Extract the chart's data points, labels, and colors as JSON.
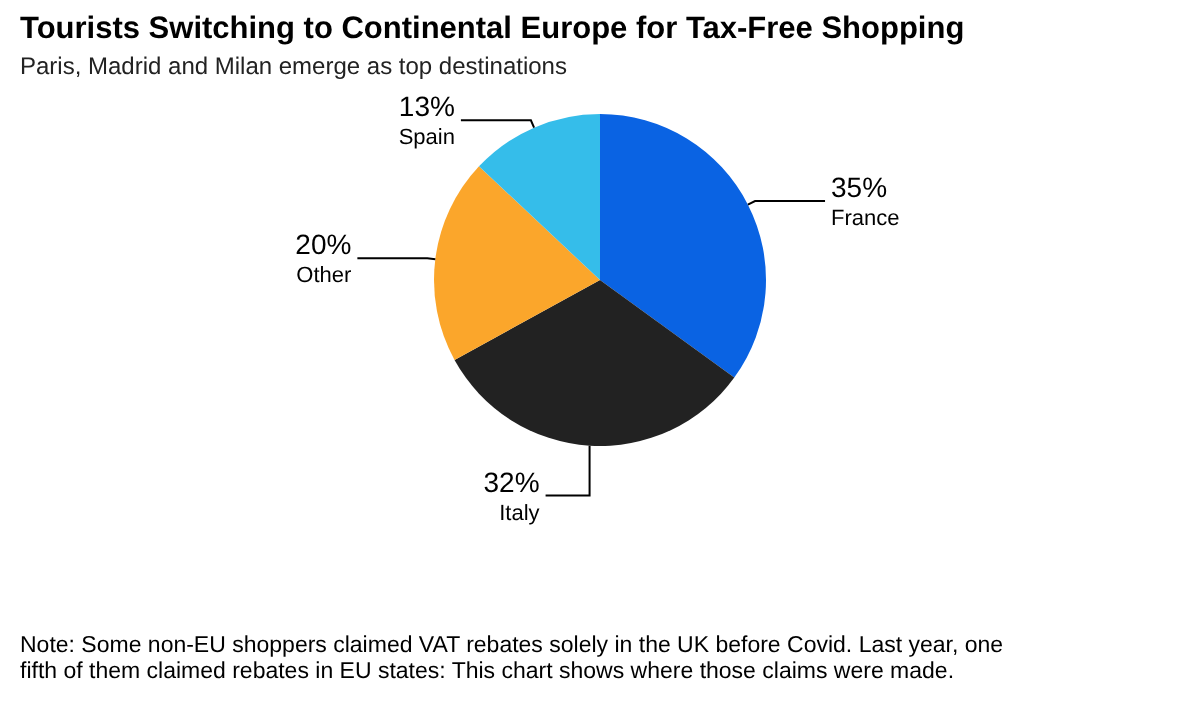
{
  "chart_data": {
    "type": "pie",
    "title": "Tourists Switching to Continental Europe for Tax-Free Shopping",
    "subtitle": "Paris, Madrid and Milan emerge as top destinations",
    "categories": [
      "France",
      "Italy",
      "Other",
      "Spain"
    ],
    "values": [
      35,
      32,
      20,
      13
    ],
    "value_labels": [
      "35%",
      "32%",
      "20%",
      "13%"
    ],
    "colors": [
      "#0a63e3",
      "#222222",
      "#fba62b",
      "#35bdea"
    ],
    "annotations": [
      "Note: Some non-EU shoppers claimed VAT rebates solely in the UK before Covid. Last year, one fifth of them claimed rebates in EU states: This chart shows where those claims were made."
    ]
  }
}
